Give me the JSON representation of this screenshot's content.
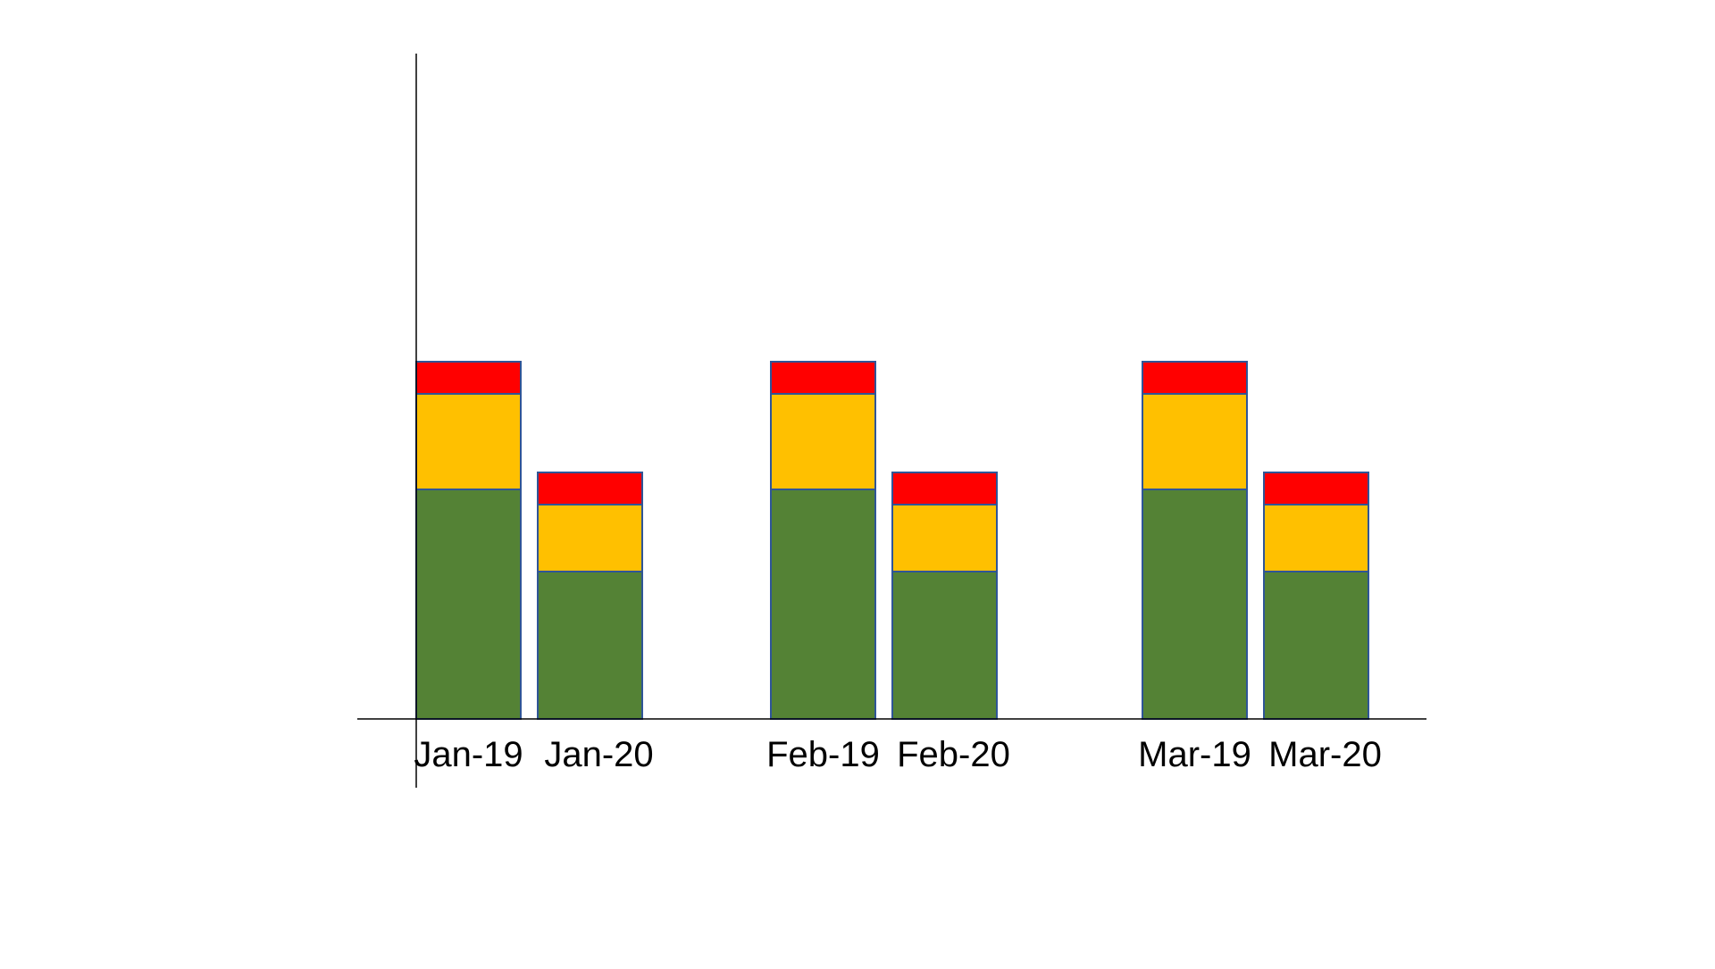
{
  "chart_data": {
    "type": "bar",
    "stacked": true,
    "categories": [
      "Jan-19",
      "Jan-20",
      "Feb-19",
      "Feb-20",
      "Mar-19",
      "Mar-20"
    ],
    "groups": [
      [
        "Jan-19",
        "Jan-20"
      ],
      [
        "Feb-19",
        "Feb-20"
      ],
      [
        "Mar-19",
        "Mar-20"
      ]
    ],
    "series": [
      {
        "color": "#548235",
        "values": [
          257,
          165,
          257,
          165,
          257,
          165
        ]
      },
      {
        "color": "#FFC000",
        "values": [
          107,
          75,
          107,
          75,
          107,
          75
        ]
      },
      {
        "color": "#FF0000",
        "values": [
          36,
          36,
          36,
          36,
          36,
          36
        ]
      }
    ],
    "bar_edge_color": "#2F5597",
    "ylim": [
      0,
      740
    ],
    "title": "",
    "xlabel": "",
    "ylabel": "",
    "grid": false,
    "legend": "none",
    "show_y_ticks": false
  }
}
